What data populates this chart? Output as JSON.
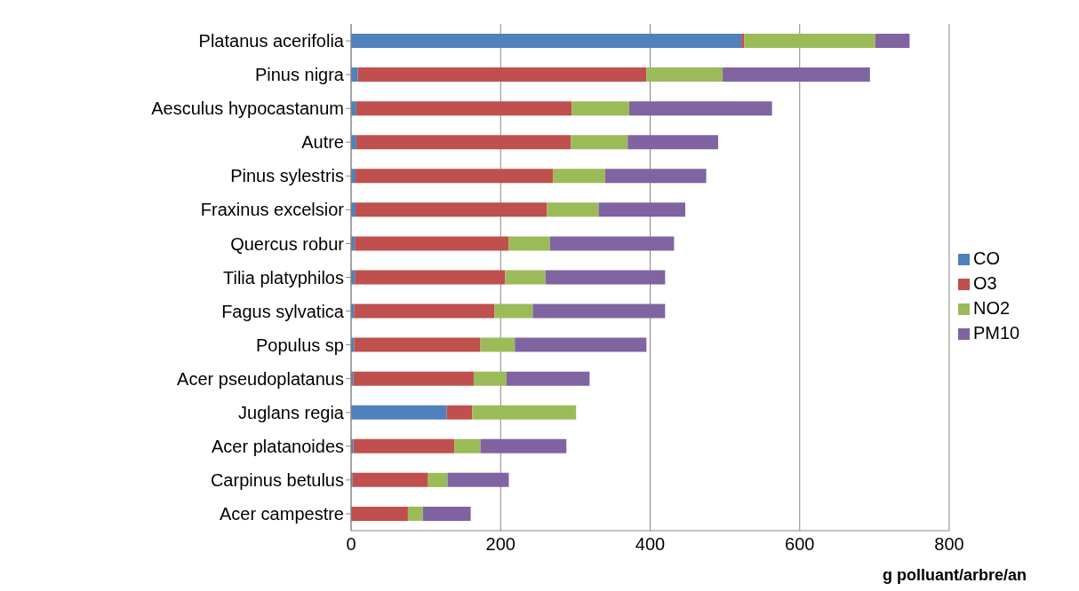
{
  "chart_data": {
    "type": "bar",
    "orientation": "horizontal",
    "stacked": true,
    "xlabel": "g polluant/arbre/an",
    "categories": [
      "Platanus acerifolia",
      "Pinus nigra",
      "Aesculus hypocastanum",
      "Autre",
      "Pinus sylestris",
      "Fraxinus excelsior",
      "Quercus robur",
      "Tilia platyphilos",
      "Fagus sylvatica",
      "Populus sp",
      "Acer pseudoplatanus",
      "Juglans regia",
      "Acer platanoides",
      "Carpinus betulus",
      "Acer campestre"
    ],
    "series": [
      {
        "name": "CO",
        "color": "#4f81bd",
        "values": [
          522,
          9,
          7,
          7,
          6,
          6,
          5,
          5,
          4,
          4,
          3,
          128,
          3,
          2,
          null
        ]
      },
      {
        "name": "O3",
        "color": "#c0504d",
        "values": [
          4,
          386,
          288,
          287,
          264,
          256,
          206,
          201,
          188,
          169,
          161,
          34,
          135,
          101,
          76
        ]
      },
      {
        "name": "NO2",
        "color": "#9bbb59",
        "values": [
          175,
          102,
          77,
          76,
          70,
          69,
          55,
          54,
          51,
          46,
          44,
          139,
          35,
          26,
          20
        ]
      },
      {
        "name": "PM10",
        "color": "#8064a2",
        "values": [
          46,
          197,
          191,
          121,
          135,
          116,
          166,
          160,
          177,
          176,
          111,
          0,
          115,
          82,
          64
        ]
      }
    ],
    "xlim": [
      0,
      800
    ],
    "xticks": [
      0,
      200,
      400,
      600,
      800
    ],
    "grid": "x",
    "legend": "right"
  }
}
